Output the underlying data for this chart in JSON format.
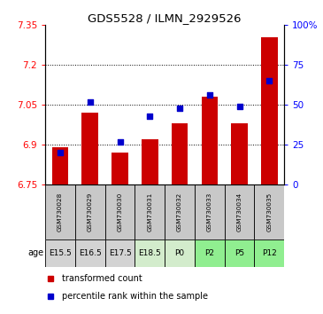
{
  "title": "GDS5528 / ILMN_2929526",
  "samples": [
    "GSM730028",
    "GSM730029",
    "GSM730030",
    "GSM730031",
    "GSM730032",
    "GSM730033",
    "GSM730034",
    "GSM730035"
  ],
  "ages": [
    "E15.5",
    "E16.5",
    "E17.5",
    "E18.5",
    "P0",
    "P2",
    "P5",
    "P12"
  ],
  "age_colors": [
    "#d3d3d3",
    "#d3d3d3",
    "#d3d3d3",
    "#d3eccc",
    "#d3eccc",
    "#90ee90",
    "#90ee90",
    "#90ee90"
  ],
  "bar_values": [
    6.89,
    7.02,
    6.87,
    6.92,
    6.98,
    7.08,
    6.98,
    7.305
  ],
  "scatter_values": [
    20,
    52,
    27,
    43,
    48,
    56,
    49,
    65
  ],
  "ylim_left": [
    6.75,
    7.35
  ],
  "ylim_right": [
    0,
    100
  ],
  "yticks_left": [
    6.75,
    6.9,
    7.05,
    7.2,
    7.35
  ],
  "yticks_right": [
    0,
    25,
    50,
    75,
    100
  ],
  "ytick_labels_left": [
    "6.75",
    "6.9",
    "7.05",
    "7.2",
    "7.35"
  ],
  "ytick_labels_right": [
    "0",
    "25",
    "50",
    "75",
    "100%"
  ],
  "bar_color": "#cc0000",
  "scatter_color": "#0000cc",
  "sample_bg_color": "#c8c8c8"
}
